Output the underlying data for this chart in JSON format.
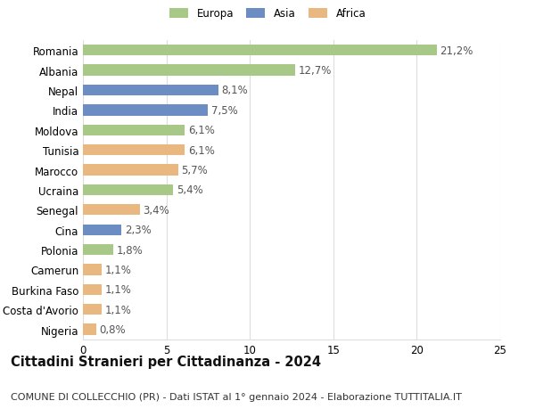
{
  "categories": [
    "Romania",
    "Albania",
    "Nepal",
    "India",
    "Moldova",
    "Tunisia",
    "Marocco",
    "Ucraina",
    "Senegal",
    "Cina",
    "Polonia",
    "Camerun",
    "Burkina Faso",
    "Costa d'Avorio",
    "Nigeria"
  ],
  "values": [
    21.2,
    12.7,
    8.1,
    7.5,
    6.1,
    6.1,
    5.7,
    5.4,
    3.4,
    2.3,
    1.8,
    1.1,
    1.1,
    1.1,
    0.8
  ],
  "labels": [
    "21,2%",
    "12,7%",
    "8,1%",
    "7,5%",
    "6,1%",
    "6,1%",
    "5,7%",
    "5,4%",
    "3,4%",
    "2,3%",
    "1,8%",
    "1,1%",
    "1,1%",
    "1,1%",
    "0,8%"
  ],
  "continents": [
    "Europa",
    "Europa",
    "Asia",
    "Asia",
    "Europa",
    "Africa",
    "Africa",
    "Europa",
    "Africa",
    "Asia",
    "Europa",
    "Africa",
    "Africa",
    "Africa",
    "Africa"
  ],
  "colors": {
    "Europa": "#a8c888",
    "Asia": "#6b8dc4",
    "Africa": "#e8b880"
  },
  "legend_labels": [
    "Europa",
    "Asia",
    "Africa"
  ],
  "xlim": [
    0,
    25
  ],
  "xticks": [
    0,
    5,
    10,
    15,
    20,
    25
  ],
  "title": "Cittadini Stranieri per Cittadinanza - 2024",
  "subtitle": "COMUNE DI COLLECCHIO (PR) - Dati ISTAT al 1° gennaio 2024 - Elaborazione TUTTITALIA.IT",
  "background_color": "#ffffff",
  "grid_color": "#dddddd",
  "bar_height": 0.55,
  "label_fontsize": 8.5,
  "tick_fontsize": 8.5,
  "title_fontsize": 10.5,
  "subtitle_fontsize": 8
}
